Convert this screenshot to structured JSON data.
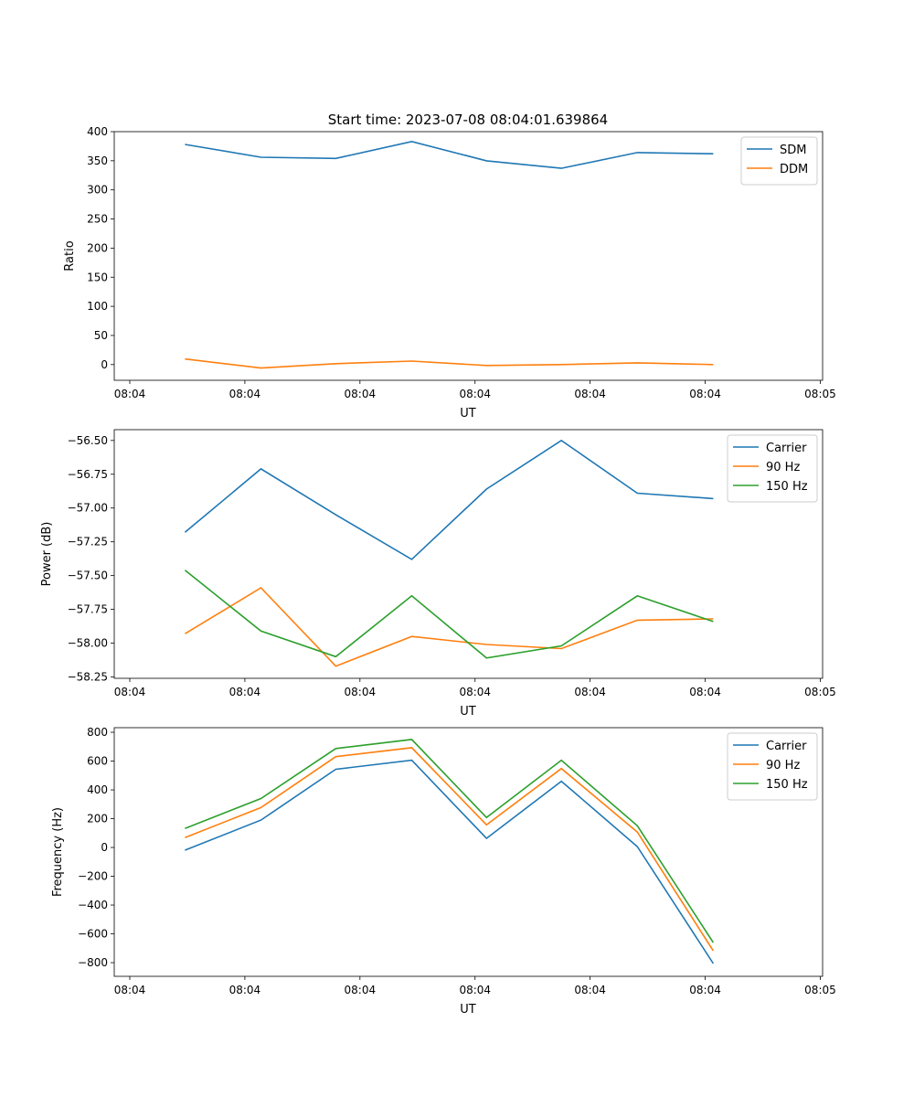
{
  "title": "Start time: 2023-07-08 08:04:01.639864",
  "chart_data": [
    {
      "type": "line",
      "xlabel": "UT",
      "ylabel": "Ratio",
      "xlim": [
        -1.35,
        60.2
      ],
      "ylim": [
        -27,
        400
      ],
      "xticks": [
        0,
        10,
        20,
        30,
        40,
        50,
        60
      ],
      "xtick_labels": [
        "08:04",
        "08:04",
        "08:04",
        "08:04",
        "08:04",
        "08:04",
        "08:05"
      ],
      "yticks": [
        0,
        50,
        100,
        150,
        200,
        250,
        300,
        350,
        400
      ],
      "ytick_labels": [
        "0",
        "50",
        "100",
        "150",
        "200",
        "250",
        "300",
        "350",
        "400"
      ],
      "legend": "top-right",
      "x": [
        4.8,
        11.4,
        17.9,
        24.5,
        31.0,
        37.5,
        44.1,
        50.7
      ],
      "series": [
        {
          "name": "SDM",
          "color": "#1f77b4",
          "values": [
            378,
            356,
            354,
            383,
            350,
            337,
            364,
            362
          ]
        },
        {
          "name": "DDM",
          "color": "#ff7f0e",
          "values": [
            9.5,
            -6,
            1.5,
            6,
            -1.5,
            0,
            3,
            0
          ]
        }
      ]
    },
    {
      "type": "line",
      "xlabel": "UT",
      "ylabel": "Power (dB)",
      "xlim": [
        -1.35,
        60.2
      ],
      "ylim": [
        -58.26,
        -56.42
      ],
      "xticks": [
        0,
        10,
        20,
        30,
        40,
        50,
        60
      ],
      "xtick_labels": [
        "08:04",
        "08:04",
        "08:04",
        "08:04",
        "08:04",
        "08:04",
        "08:05"
      ],
      "yticks": [
        -58.25,
        -58.0,
        -57.75,
        -57.5,
        -57.25,
        -57.0,
        -56.75,
        -56.5
      ],
      "ytick_labels": [
        "−58.25",
        "−58.00",
        "−57.75",
        "−57.50",
        "−57.25",
        "−57.00",
        "−56.75",
        "−56.50"
      ],
      "legend": "top-right",
      "x": [
        4.8,
        11.4,
        17.9,
        24.5,
        31.0,
        37.5,
        44.1,
        50.7
      ],
      "series": [
        {
          "name": "Carrier",
          "color": "#1f77b4",
          "values": [
            -57.18,
            -56.71,
            -57.05,
            -57.38,
            -56.86,
            -56.5,
            -56.89,
            -56.93
          ]
        },
        {
          "name": "90 Hz",
          "color": "#ff7f0e",
          "values": [
            -57.93,
            -57.59,
            -58.17,
            -57.95,
            -58.01,
            -58.04,
            -57.83,
            -57.82
          ]
        },
        {
          "name": "150 Hz",
          "color": "#2ca02c",
          "values": [
            -57.46,
            -57.91,
            -58.1,
            -57.65,
            -58.11,
            -58.02,
            -57.65,
            -57.84
          ]
        }
      ]
    },
    {
      "type": "line",
      "xlabel": "UT",
      "ylabel": "Frequency (Hz)",
      "xlim": [
        -1.35,
        60.2
      ],
      "ylim": [
        -895,
        832
      ],
      "xticks": [
        0,
        10,
        20,
        30,
        40,
        50,
        60
      ],
      "xtick_labels": [
        "08:04",
        "08:04",
        "08:04",
        "08:04",
        "08:04",
        "08:04",
        "08:05"
      ],
      "yticks": [
        -800,
        -600,
        -400,
        -200,
        0,
        200,
        400,
        600,
        800
      ],
      "ytick_labels": [
        "−800",
        "−600",
        "−400",
        "−200",
        "0",
        "200",
        "400",
        "600",
        "800"
      ],
      "legend": "top-right",
      "x": [
        4.8,
        11.4,
        17.9,
        24.5,
        31.0,
        37.5,
        44.1,
        50.7
      ],
      "series": [
        {
          "name": "Carrier",
          "color": "#1f77b4",
          "values": [
            -19,
            190,
            543,
            606,
            63,
            460,
            6,
            -806
          ]
        },
        {
          "name": "90 Hz",
          "color": "#ff7f0e",
          "values": [
            69,
            277,
            631,
            693,
            157,
            548,
            107,
            -718
          ]
        },
        {
          "name": "150 Hz",
          "color": "#2ca02c",
          "values": [
            132,
            340,
            687,
            750,
            208,
            606,
            151,
            -661
          ]
        }
      ]
    }
  ]
}
